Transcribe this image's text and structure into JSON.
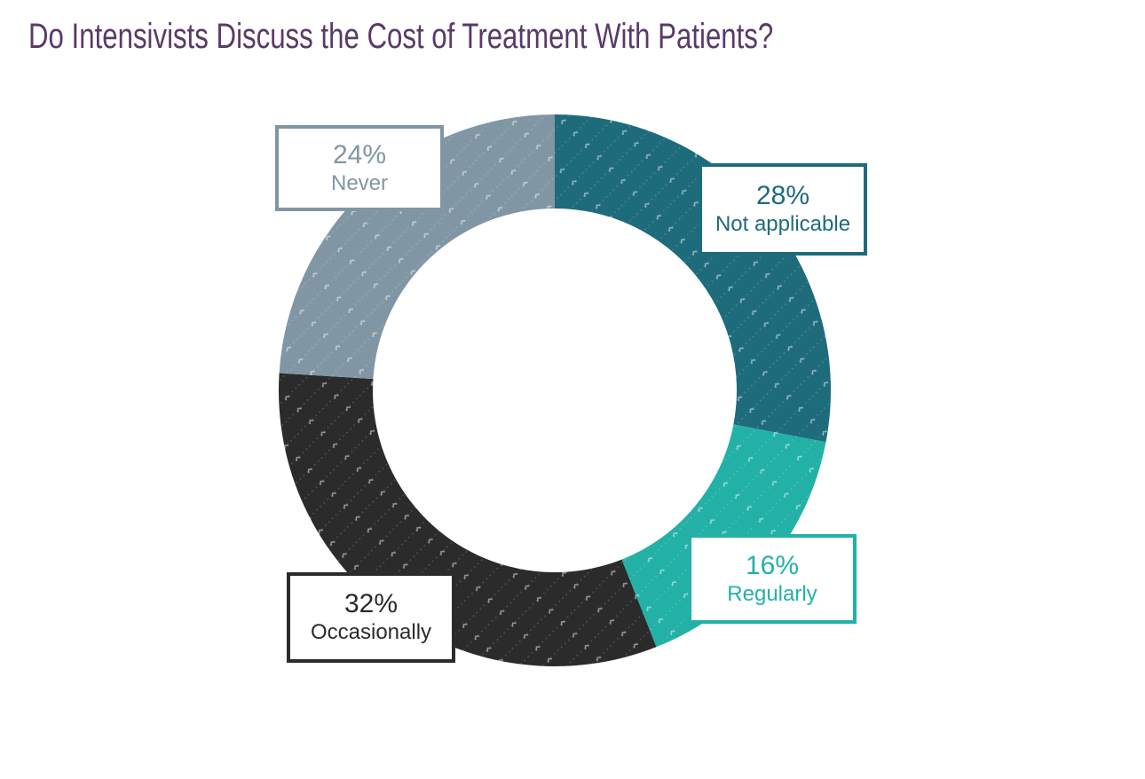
{
  "title": {
    "text": "Do Intensivists Discuss the Cost of Treatment With Patients?",
    "color": "#5a3a68"
  },
  "chart_data": {
    "type": "pie",
    "subtype": "donut",
    "title": "Do Intensivists Discuss the Cost of Treatment With Patients?",
    "direction": "clockwise",
    "start_angle": "12-oclock",
    "donut_hole_ratio": 0.66,
    "texture": "diagonal dotted lines with small sparkle chevrons",
    "legend_position": "callout boxes overlapping ring",
    "background": "#ffffff",
    "segments": [
      {
        "label": "Not applicable",
        "value": 28,
        "pct_text": "28%",
        "color": "#1e6b7c"
      },
      {
        "label": "Regularly",
        "value": 16,
        "pct_text": "16%",
        "color": "#23b1a7"
      },
      {
        "label": "Occasionally",
        "value": 32,
        "pct_text": "32%",
        "color": "#2b2b2b"
      },
      {
        "label": "Never",
        "value": 24,
        "pct_text": "24%",
        "color": "#8096a4"
      }
    ]
  }
}
